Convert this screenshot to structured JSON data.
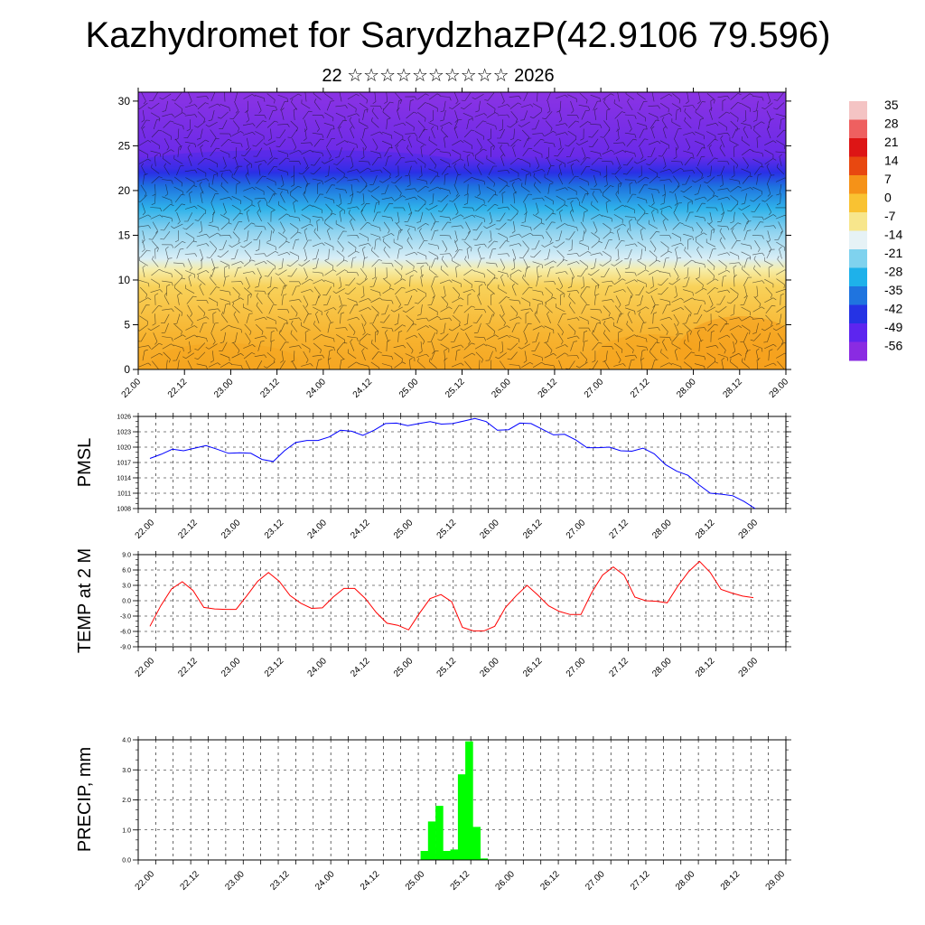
{
  "title": "Kazhydromet for SarydzhazP(42.9106 79.596)",
  "subtitle": "22 ☆☆☆☆☆☆☆☆☆☆ 2026",
  "time_labels": [
    "22.00",
    "22.12",
    "23.00",
    "23.12",
    "24.00",
    "24.12",
    "25.00",
    "25.12",
    "26.00",
    "26.12",
    "27.00",
    "27.12",
    "28.00",
    "28.12",
    "29.00"
  ],
  "chart_data": [
    {
      "type": "heatmap",
      "name": "cross-section",
      "title": "",
      "y_ticks": [
        0,
        5,
        10,
        15,
        20,
        25,
        30
      ],
      "ylim": [
        0,
        31
      ],
      "colorbar": {
        "labels": [
          "35",
          "28",
          "21",
          "14",
          "7",
          "0",
          "-7",
          "-14",
          "-21",
          "-28",
          "-35",
          "-42",
          "-49",
          "-56"
        ],
        "colors_top_to_bottom": [
          "#f4c4c4",
          "#ee6060",
          "#dd1515",
          "#e84810",
          "#f59218",
          "#f9c232",
          "#f7e68c",
          "#e6f2f6",
          "#7fd2ee",
          "#1eb1ea",
          "#1f74df",
          "#2533e4",
          "#5d25ef",
          "#8a2be2"
        ]
      },
      "note": "filled temperature (°C) by height vs time with wind barbs"
    },
    {
      "type": "line",
      "name": "pmsl",
      "ylabel": "PMSL",
      "ylim": [
        1008,
        1026
      ],
      "y_ticks": [
        "1026",
        "1023",
        "1020",
        "1017",
        "1014",
        "1011",
        "1008"
      ],
      "color": "#0000ff",
      "values": [
        1017.8,
        1018.6,
        1019.6,
        1019.3,
        1019.8,
        1020.3,
        1019.6,
        1018.8,
        1018.9,
        1018.8,
        1017.6,
        1017.2,
        1019.3,
        1020.9,
        1021.3,
        1021.3,
        1022.0,
        1023.3,
        1023.1,
        1022.3,
        1023.3,
        1024.6,
        1024.7,
        1024.2,
        1024.6,
        1025.0,
        1024.5,
        1024.6,
        1025.1,
        1025.6,
        1025.0,
        1023.3,
        1023.4,
        1024.7,
        1024.6,
        1023.5,
        1022.4,
        1022.5,
        1021.4,
        1019.9,
        1019.9,
        1020.0,
        1019.3,
        1019.2,
        1019.8,
        1018.7,
        1016.6,
        1015.3,
        1014.5,
        1012.6,
        1011.0,
        1010.8,
        1010.5,
        1009.4,
        1008.0
      ]
    },
    {
      "type": "line",
      "name": "temp2m",
      "ylabel": "TEMP at 2 M",
      "ylim": [
        -9,
        9
      ],
      "y_ticks": [
        "9.0",
        "6.0",
        "3.0",
        "0.0",
        "-3.0",
        "-6.0",
        "-9.0"
      ],
      "color": "#ff0000",
      "values": [
        -5.0,
        -1.0,
        2.3,
        3.7,
        2.0,
        -1.3,
        -1.6,
        -1.7,
        -1.7,
        1.0,
        3.8,
        5.5,
        3.8,
        1.0,
        -0.5,
        -1.5,
        -1.4,
        0.7,
        2.4,
        2.4,
        0.4,
        -2.3,
        -4.4,
        -4.8,
        -5.7,
        -2.5,
        0.4,
        1.2,
        -0.2,
        -5.2,
        -5.9,
        -5.9,
        -5.0,
        -1.3,
        1.0,
        3.0,
        1.1,
        -1.0,
        -2.1,
        -2.7,
        -2.7,
        1.6,
        5.0,
        6.6,
        5.0,
        0.7,
        0.0,
        -0.1,
        -0.4,
        2.9,
        5.7,
        7.7,
        5.5,
        2.2,
        1.5,
        0.9,
        0.6
      ]
    },
    {
      "type": "bar",
      "name": "precip",
      "ylabel": "PRECIP, mm",
      "ylim": [
        0,
        4
      ],
      "y_ticks": [
        "4.0",
        "3.0",
        "2.0",
        "1.0",
        "0.0"
      ],
      "color": "#00ff00",
      "values": [
        0,
        0,
        0,
        0,
        0,
        0,
        0,
        0,
        0,
        0,
        0,
        0,
        0,
        0,
        0,
        0,
        0,
        0,
        0,
        0,
        0,
        0,
        0,
        0,
        0,
        0,
        0,
        0,
        0,
        0,
        0,
        0,
        0,
        0,
        0,
        0,
        0,
        0.3,
        1.28,
        1.8,
        0.3,
        0.35,
        2.85,
        3.95,
        1.1,
        0.05,
        0,
        0,
        0,
        0,
        0,
        0,
        0,
        0,
        0,
        0,
        0,
        0,
        0,
        0,
        0,
        0,
        0,
        0,
        0,
        0,
        0,
        0,
        0,
        0,
        0,
        0,
        0,
        0,
        0,
        0,
        0,
        0,
        0,
        0,
        0,
        0,
        0,
        0,
        0
      ]
    }
  ]
}
